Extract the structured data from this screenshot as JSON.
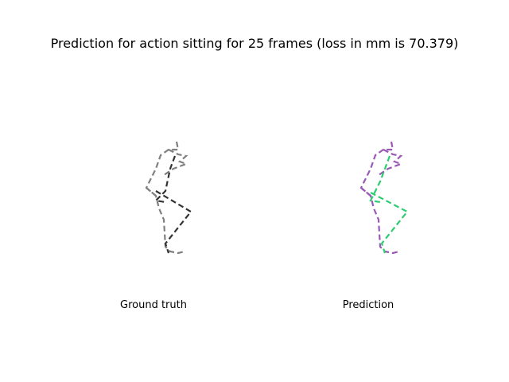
{
  "figure": {
    "title": "Prediction for action sitting for 25 frames (loss in mm is 70.379)"
  },
  "panels": [
    {
      "label": "Ground truth",
      "colors": {
        "primary": "#808080",
        "secondary": "#333333"
      }
    },
    {
      "label": "Prediction",
      "colors": {
        "primary": "#9b59b6",
        "secondary": "#2ecc71"
      }
    }
  ]
}
